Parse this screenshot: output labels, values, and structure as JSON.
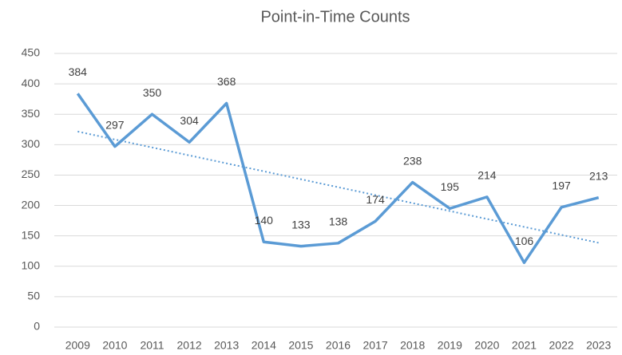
{
  "chart_data": {
    "type": "line",
    "title": "Point-in-Time Counts",
    "categories": [
      "2009",
      "2010",
      "2011",
      "2012",
      "2013",
      "2014",
      "2015",
      "2016",
      "2017",
      "2018",
      "2019",
      "2020",
      "2021",
      "2022",
      "2023"
    ],
    "values": [
      384,
      297,
      350,
      304,
      368,
      140,
      133,
      138,
      174,
      238,
      195,
      214,
      106,
      197,
      213
    ],
    "color": "#5b9bd5",
    "trendline": "linear",
    "ylim": [
      0,
      450
    ],
    "yticks": [
      0,
      50,
      100,
      150,
      200,
      250,
      300,
      350,
      400,
      450
    ],
    "grid": true
  }
}
